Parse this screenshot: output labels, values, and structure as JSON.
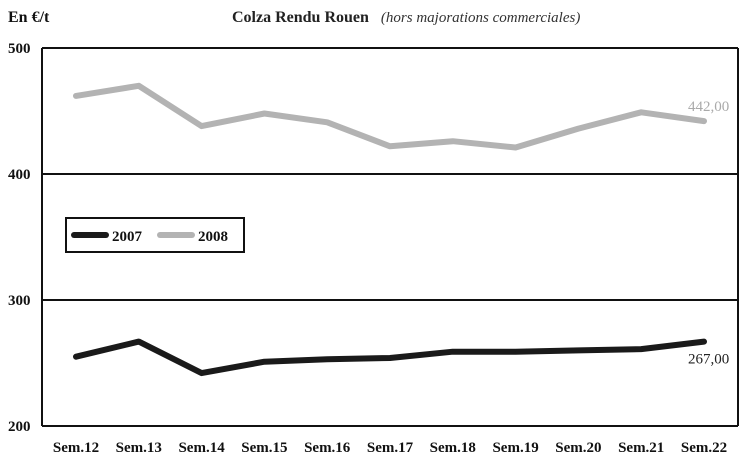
{
  "chart_data": {
    "type": "line",
    "title": "Colza Rendu Rouen",
    "subtitle": "(hors majorations commerciales)",
    "ylabel": "En €/t",
    "xlabel": "",
    "categories": [
      "Sem.12",
      "Sem.13",
      "Sem.14",
      "Sem.15",
      "Sem.16",
      "Sem.17",
      "Sem.18",
      "Sem.19",
      "Sem.20",
      "Sem.21",
      "Sem.22"
    ],
    "ylim": [
      200,
      500
    ],
    "yticks": [
      200,
      300,
      400,
      500
    ],
    "grid": true,
    "legend_placement": "left",
    "series": [
      {
        "name": "2007",
        "color": "#1a1a1a",
        "values": [
          255,
          267,
          242,
          251,
          253,
          254,
          259,
          259,
          260,
          261,
          267
        ],
        "end_label": "267,00"
      },
      {
        "name": "2008",
        "color": "#b3b3b3",
        "values": [
          462,
          470,
          438,
          448,
          441,
          422,
          426,
          421,
          436,
          449,
          442
        ],
        "end_label": "442,00"
      }
    ]
  }
}
